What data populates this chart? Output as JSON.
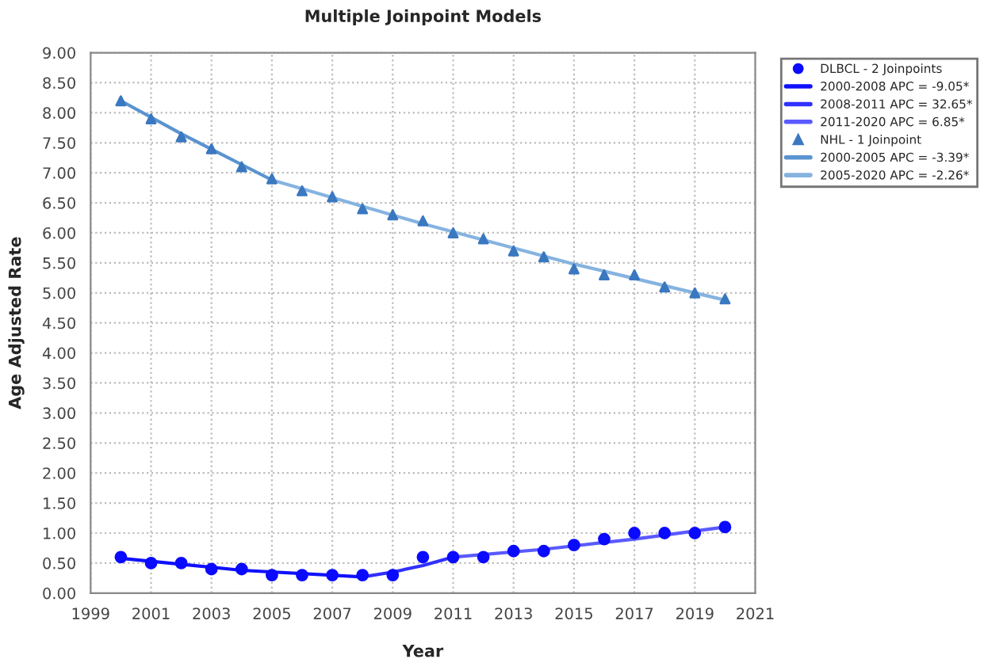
{
  "chart_data": {
    "type": "scatter",
    "title": "Multiple Joinpoint Models",
    "xlabel": "Year",
    "ylabel": "Age Adjusted Rate",
    "x": [
      2000,
      2001,
      2002,
      2003,
      2004,
      2005,
      2006,
      2007,
      2008,
      2009,
      2010,
      2011,
      2012,
      2013,
      2014,
      2015,
      2016,
      2017,
      2018,
      2019,
      2020
    ],
    "series": [
      {
        "name": "DLBCL - 2 Joinpoints",
        "marker": "circle",
        "color": "#0a0aff",
        "values": [
          0.6,
          0.5,
          0.5,
          0.4,
          0.4,
          0.3,
          0.3,
          0.3,
          0.3,
          0.3,
          0.6,
          0.6,
          0.6,
          0.7,
          0.7,
          0.8,
          0.9,
          1.0,
          1.0,
          1.0,
          1.1
        ]
      },
      {
        "name": "2000-2008 APC = -9.05*",
        "type": "line",
        "color": "#1010ff",
        "x": [
          2000,
          2004,
          2008
        ],
        "values": [
          0.58,
          0.38,
          0.27
        ]
      },
      {
        "name": "2008-2011 APC = 32.65*",
        "type": "line",
        "color": "#3030ff",
        "x": [
          2008,
          2009,
          2010,
          2011
        ],
        "values": [
          0.27,
          0.35,
          0.46,
          0.6
        ]
      },
      {
        "name": "2011-2020 APC = 6.85*",
        "type": "line",
        "color": "#5a5aff",
        "x": [
          2011,
          2014,
          2017,
          2020
        ],
        "values": [
          0.6,
          0.73,
          0.9,
          1.1
        ]
      },
      {
        "name": "NHL - 1 Joinpoint",
        "marker": "triangle",
        "color": "#3a78c0",
        "values": [
          8.2,
          7.9,
          7.6,
          7.4,
          7.1,
          6.9,
          6.7,
          6.6,
          6.4,
          6.3,
          6.2,
          6.0,
          5.9,
          5.7,
          5.6,
          5.4,
          5.3,
          5.3,
          5.1,
          5.0,
          4.9
        ]
      },
      {
        "name": "2000-2005 APC = -3.39*",
        "type": "line",
        "color": "#5a93d0",
        "x": [
          2000,
          2002,
          2005
        ],
        "values": [
          8.2,
          7.65,
          6.88
        ]
      },
      {
        "name": "2005-2020 APC = -2.26*",
        "type": "line",
        "color": "#86b3e0",
        "x": [
          2005,
          2010,
          2015,
          2020
        ],
        "values": [
          6.88,
          6.15,
          5.48,
          4.88
        ]
      }
    ],
    "xlim": [
      1999,
      2021
    ],
    "xticks": [
      1999,
      2001,
      2003,
      2005,
      2007,
      2009,
      2011,
      2013,
      2015,
      2017,
      2019,
      2021
    ],
    "ylim": [
      0,
      9
    ],
    "yticks": [
      {
        "value": 0,
        "label": "0.00"
      },
      {
        "value": 0.5,
        "label": "0.50"
      },
      {
        "value": 1,
        "label": "1.00"
      },
      {
        "value": 1.5,
        "label": "1.50"
      },
      {
        "value": 2,
        "label": "2.00"
      },
      {
        "value": 2.5,
        "label": "2.50"
      },
      {
        "value": 3,
        "label": "3.00"
      },
      {
        "value": 3.5,
        "label": "3.50"
      },
      {
        "value": 4,
        "label": "4.00"
      },
      {
        "value": 4.5,
        "label": "4.50"
      },
      {
        "value": 5,
        "label": "5.00"
      },
      {
        "value": 5.5,
        "label": "5.50"
      },
      {
        "value": 6,
        "label": "6.00"
      },
      {
        "value": 6.5,
        "label": "6.50"
      },
      {
        "value": 7,
        "label": "7.00"
      },
      {
        "value": 7.5,
        "label": "7.50"
      },
      {
        "value": 8,
        "label": "8.00"
      },
      {
        "value": 8.5,
        "label": "8.50"
      },
      {
        "value": 9,
        "label": "9.00"
      }
    ],
    "grid": true,
    "legend": "top right",
    "line_style": "solid"
  }
}
